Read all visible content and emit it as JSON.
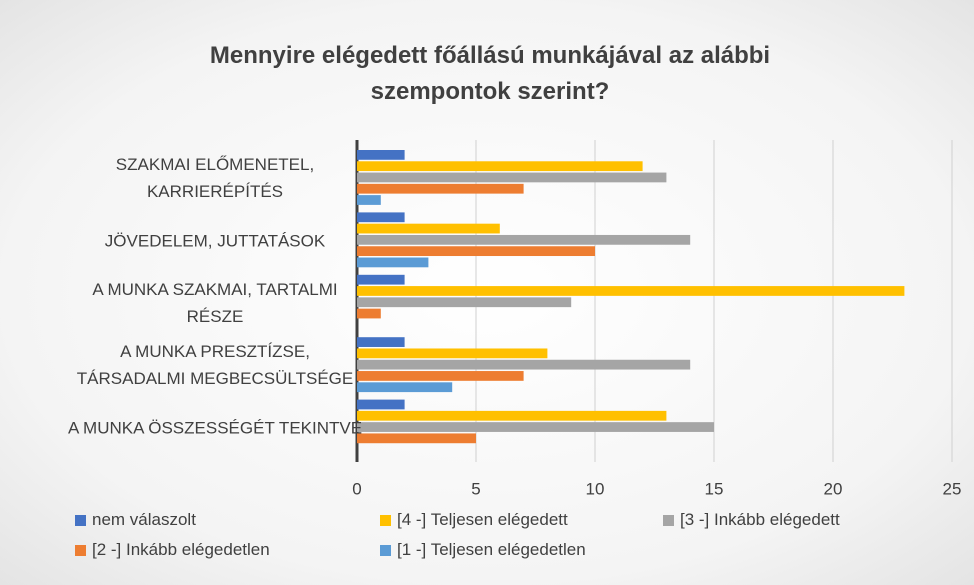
{
  "chart_data": {
    "type": "hbar",
    "title": "Mennyire elégedett főállású munkájával az alábbi szempontok szerint?",
    "categories": [
      "SZAKMAI ELŐMENETEL, KARRIERÉPÍTÉS",
      "JÖVEDELEM, JUTTATÁSOK",
      "A MUNKA SZAKMAI, TARTALMI RÉSZE",
      "A MUNKA PRESZTÍZSE, TÁRSADALMI MEGBECSÜLTSÉGE",
      "A MUNKA ÖSSZESSÉGÉT TEKINTVE"
    ],
    "series": [
      {
        "name": "nem válaszolt",
        "color": "#4472c4",
        "values": [
          2,
          2,
          2,
          2,
          2
        ]
      },
      {
        "name": "[4 -] Teljesen elégedett",
        "color": "#ffc000",
        "values": [
          12,
          6,
          23,
          8,
          13
        ]
      },
      {
        "name": "[3 -] Inkább elégedett",
        "color": "#a5a5a5",
        "values": [
          13,
          14,
          9,
          14,
          15
        ]
      },
      {
        "name": "[2 -] Inkább elégedetlen",
        "color": "#ed7d31",
        "values": [
          7,
          10,
          1,
          7,
          5
        ]
      },
      {
        "name": "[1 -] Teljesen elégedetlen",
        "color": "#5b9bd5",
        "values": [
          1,
          3,
          0,
          4,
          0
        ]
      }
    ],
    "xlim": [
      0,
      25
    ],
    "xticks": [
      0,
      5,
      10,
      15,
      20,
      25
    ],
    "grid": true,
    "legend": "bottom"
  }
}
